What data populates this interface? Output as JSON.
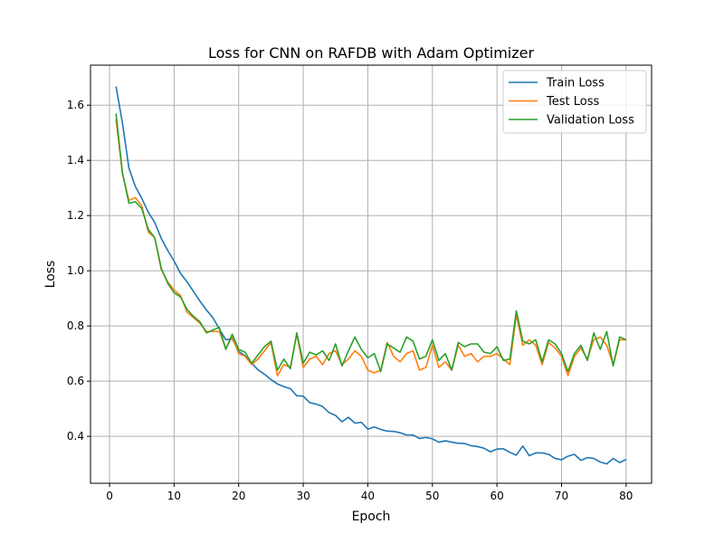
{
  "chart_data": {
    "type": "line",
    "title": "Loss for CNN on RAFDB with Adam Optimizer",
    "xlabel": "Epoch",
    "ylabel": "Loss",
    "xlim": [
      -2.95,
      83.95
    ],
    "ylim": [
      0.23,
      1.745
    ],
    "xticks": [
      0,
      10,
      20,
      30,
      40,
      50,
      60,
      70,
      80
    ],
    "xtick_labels": [
      "0",
      "10",
      "20",
      "30",
      "40",
      "50",
      "60",
      "70",
      "80"
    ],
    "yticks": [
      0.4,
      0.6,
      0.8,
      1.0,
      1.2,
      1.4,
      1.6
    ],
    "ytick_labels": [
      "0.4",
      "0.6",
      "0.8",
      "1.0",
      "1.2",
      "1.4",
      "1.6"
    ],
    "grid": true,
    "legend_position": "upper right",
    "x": [
      1,
      2,
      3,
      4,
      5,
      6,
      7,
      8,
      9,
      10,
      11,
      12,
      13,
      14,
      15,
      16,
      17,
      18,
      19,
      20,
      21,
      22,
      23,
      24,
      25,
      26,
      27,
      28,
      29,
      30,
      31,
      32,
      33,
      34,
      35,
      36,
      37,
      38,
      39,
      40,
      41,
      42,
      43,
      44,
      45,
      46,
      47,
      48,
      49,
      50,
      51,
      52,
      53,
      54,
      55,
      56,
      57,
      58,
      59,
      60,
      61,
      62,
      63,
      64,
      65,
      66,
      67,
      68,
      69,
      70,
      71,
      72,
      73,
      74,
      75,
      76,
      77,
      78,
      79,
      80
    ],
    "series": [
      {
        "name": "Train Loss",
        "color": "#1f77b4",
        "values": [
          1.668,
          1.535,
          1.372,
          1.305,
          1.262,
          1.212,
          1.175,
          1.118,
          1.074,
          1.035,
          0.99,
          0.96,
          0.925,
          0.89,
          0.858,
          0.83,
          0.789,
          0.75,
          0.754,
          0.708,
          0.692,
          0.666,
          0.641,
          0.625,
          0.606,
          0.59,
          0.58,
          0.573,
          0.547,
          0.546,
          0.522,
          0.517,
          0.508,
          0.486,
          0.476,
          0.453,
          0.469,
          0.448,
          0.451,
          0.426,
          0.434,
          0.425,
          0.419,
          0.418,
          0.413,
          0.405,
          0.405,
          0.392,
          0.396,
          0.391,
          0.379,
          0.384,
          0.379,
          0.375,
          0.374,
          0.366,
          0.363,
          0.357,
          0.344,
          0.354,
          0.355,
          0.342,
          0.332,
          0.365,
          0.33,
          0.34,
          0.34,
          0.335,
          0.32,
          0.315,
          0.328,
          0.335,
          0.313,
          0.323,
          0.32,
          0.307,
          0.3,
          0.32,
          0.305,
          0.316
        ]
      },
      {
        "name": "Test Loss",
        "color": "#ff7f0e",
        "values": [
          1.55,
          1.35,
          1.255,
          1.265,
          1.235,
          1.14,
          1.12,
          1.005,
          0.96,
          0.93,
          0.91,
          0.85,
          0.83,
          0.81,
          0.78,
          0.78,
          0.78,
          0.72,
          0.76,
          0.7,
          0.69,
          0.66,
          0.68,
          0.71,
          0.74,
          0.62,
          0.66,
          0.65,
          0.77,
          0.65,
          0.68,
          0.69,
          0.66,
          0.7,
          0.71,
          0.66,
          0.68,
          0.71,
          0.69,
          0.64,
          0.63,
          0.64,
          0.74,
          0.69,
          0.67,
          0.7,
          0.71,
          0.64,
          0.65,
          0.73,
          0.65,
          0.67,
          0.64,
          0.73,
          0.69,
          0.7,
          0.67,
          0.69,
          0.69,
          0.7,
          0.68,
          0.66,
          0.84,
          0.73,
          0.75,
          0.73,
          0.66,
          0.74,
          0.72,
          0.69,
          0.62,
          0.69,
          0.72,
          0.68,
          0.75,
          0.76,
          0.73,
          0.66,
          0.75,
          0.75
        ]
      },
      {
        "name": "Validation Loss",
        "color": "#2ca02c",
        "values": [
          1.57,
          1.355,
          1.245,
          1.25,
          1.225,
          1.15,
          1.12,
          1.01,
          0.955,
          0.92,
          0.905,
          0.86,
          0.835,
          0.815,
          0.775,
          0.785,
          0.795,
          0.715,
          0.77,
          0.715,
          0.705,
          0.665,
          0.695,
          0.725,
          0.745,
          0.64,
          0.68,
          0.645,
          0.775,
          0.665,
          0.705,
          0.695,
          0.71,
          0.675,
          0.735,
          0.655,
          0.71,
          0.76,
          0.715,
          0.685,
          0.7,
          0.635,
          0.735,
          0.72,
          0.705,
          0.76,
          0.745,
          0.68,
          0.69,
          0.75,
          0.675,
          0.7,
          0.64,
          0.74,
          0.725,
          0.735,
          0.735,
          0.705,
          0.7,
          0.725,
          0.675,
          0.68,
          0.855,
          0.745,
          0.735,
          0.75,
          0.67,
          0.75,
          0.735,
          0.7,
          0.635,
          0.7,
          0.73,
          0.675,
          0.775,
          0.715,
          0.78,
          0.655,
          0.76,
          0.75
        ]
      }
    ]
  }
}
